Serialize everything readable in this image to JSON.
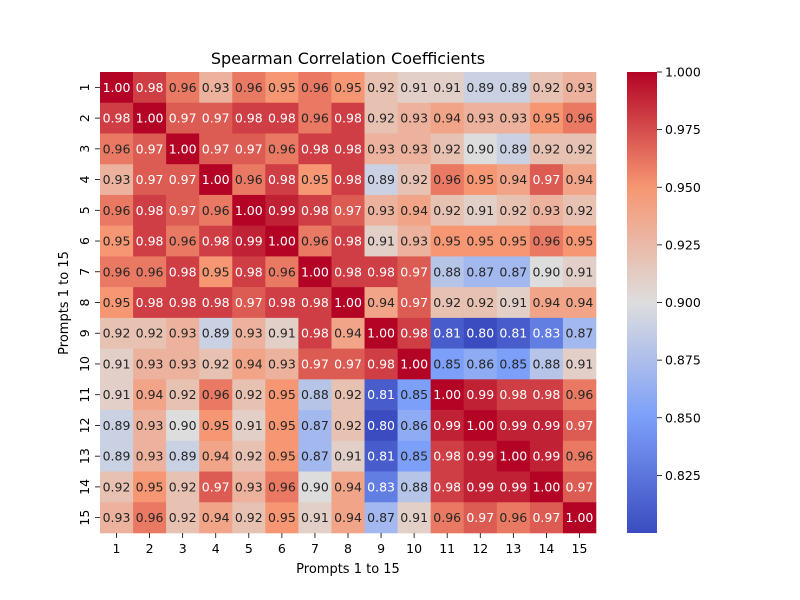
{
  "chart_data": {
    "type": "heatmap",
    "title": "Spearman Correlation Coefficients",
    "xlabel": "Prompts 1 to 15",
    "ylabel": "Prompts 1 to 15",
    "categories": [
      "1",
      "2",
      "3",
      "4",
      "5",
      "6",
      "7",
      "8",
      "9",
      "10",
      "11",
      "12",
      "13",
      "14",
      "15"
    ],
    "colormap": "coolwarm",
    "vmin": 0.8,
    "vmax": 1.0,
    "colorbar_ticks": [
      "0.825",
      "0.850",
      "0.875",
      "0.900",
      "0.925",
      "0.950",
      "0.975",
      "1.000"
    ],
    "matrix": [
      [
        1.0,
        0.98,
        0.96,
        0.93,
        0.96,
        0.95,
        0.96,
        0.95,
        0.92,
        0.91,
        0.91,
        0.89,
        0.89,
        0.92,
        0.93
      ],
      [
        0.98,
        1.0,
        0.97,
        0.97,
        0.98,
        0.98,
        0.96,
        0.98,
        0.92,
        0.93,
        0.94,
        0.93,
        0.93,
        0.95,
        0.96
      ],
      [
        0.96,
        0.97,
        1.0,
        0.97,
        0.97,
        0.96,
        0.98,
        0.98,
        0.93,
        0.93,
        0.92,
        0.9,
        0.89,
        0.92,
        0.92
      ],
      [
        0.93,
        0.97,
        0.97,
        1.0,
        0.96,
        0.98,
        0.95,
        0.98,
        0.89,
        0.92,
        0.96,
        0.95,
        0.94,
        0.97,
        0.94
      ],
      [
        0.96,
        0.98,
        0.97,
        0.96,
        1.0,
        0.99,
        0.98,
        0.97,
        0.93,
        0.94,
        0.92,
        0.91,
        0.92,
        0.93,
        0.92
      ],
      [
        0.95,
        0.98,
        0.96,
        0.98,
        0.99,
        1.0,
        0.96,
        0.98,
        0.91,
        0.93,
        0.95,
        0.95,
        0.95,
        0.96,
        0.95
      ],
      [
        0.96,
        0.96,
        0.98,
        0.95,
        0.98,
        0.96,
        1.0,
        0.98,
        0.98,
        0.97,
        0.88,
        0.87,
        0.87,
        0.9,
        0.91
      ],
      [
        0.95,
        0.98,
        0.98,
        0.98,
        0.97,
        0.98,
        0.98,
        1.0,
        0.94,
        0.97,
        0.92,
        0.92,
        0.91,
        0.94,
        0.94
      ],
      [
        0.92,
        0.92,
        0.93,
        0.89,
        0.93,
        0.91,
        0.98,
        0.94,
        1.0,
        0.98,
        0.81,
        0.8,
        0.81,
        0.83,
        0.87
      ],
      [
        0.91,
        0.93,
        0.93,
        0.92,
        0.94,
        0.93,
        0.97,
        0.97,
        0.98,
        1.0,
        0.85,
        0.86,
        0.85,
        0.88,
        0.91
      ],
      [
        0.91,
        0.94,
        0.92,
        0.96,
        0.92,
        0.95,
        0.88,
        0.92,
        0.81,
        0.85,
        1.0,
        0.99,
        0.98,
        0.98,
        0.96
      ],
      [
        0.89,
        0.93,
        0.9,
        0.95,
        0.91,
        0.95,
        0.87,
        0.92,
        0.8,
        0.86,
        0.99,
        1.0,
        0.99,
        0.99,
        0.97
      ],
      [
        0.89,
        0.93,
        0.89,
        0.94,
        0.92,
        0.95,
        0.87,
        0.91,
        0.81,
        0.85,
        0.98,
        0.99,
        1.0,
        0.99,
        0.96
      ],
      [
        0.92,
        0.95,
        0.92,
        0.97,
        0.93,
        0.96,
        0.9,
        0.94,
        0.83,
        0.88,
        0.98,
        0.99,
        0.99,
        1.0,
        0.97
      ],
      [
        0.93,
        0.96,
        0.92,
        0.94,
        0.92,
        0.95,
        0.91,
        0.94,
        0.87,
        0.91,
        0.96,
        0.97,
        0.96,
        0.97,
        1.0
      ]
    ]
  }
}
